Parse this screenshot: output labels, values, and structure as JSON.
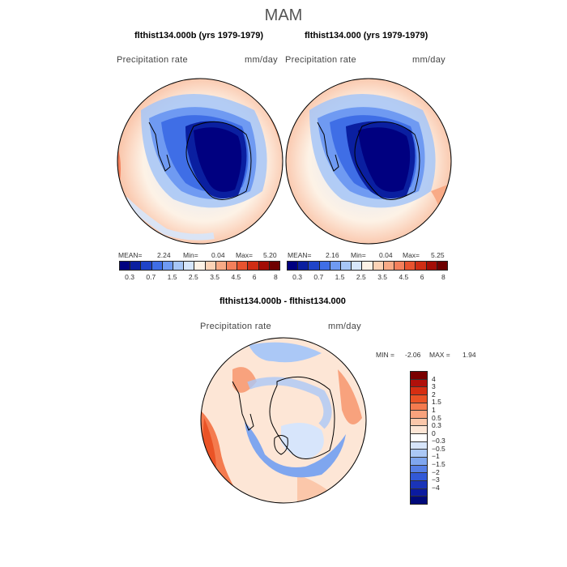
{
  "header": {
    "season": "MAM"
  },
  "panels": [
    {
      "title": "flthist134.000b (yrs 1979-1979)",
      "field_label": "Precipitation rate",
      "units": "mm/day",
      "stats": {
        "mean_label": "MEAN=",
        "mean": "2.24",
        "min_label": "Min=",
        "min": "0.04",
        "max_label": "Max=",
        "max": "5.20"
      }
    },
    {
      "title": "flthist134.000 (yrs 1979-1979)",
      "field_label": "Precipitation rate",
      "units": "mm/day",
      "stats": {
        "mean_label": "MEAN=",
        "mean": "2.16",
        "min_label": "Min=",
        "min": "0.04",
        "max_label": "Max=",
        "max": "5.25"
      }
    }
  ],
  "abs_colorbar": {
    "ticks": [
      "0.3",
      "0.7",
      "1.5",
      "2.5",
      "3.5",
      "4.5",
      "6",
      "8"
    ],
    "colors": [
      "#000080",
      "#0a1fa0",
      "#1f44c8",
      "#3f6ee6",
      "#6f9af2",
      "#a6c6f7",
      "#d6e6fb",
      "#fdf2e6",
      "#fcd3b6",
      "#f8aa86",
      "#f3805c",
      "#e8532f",
      "#cf2d14",
      "#a30d06",
      "#6e0000"
    ]
  },
  "difference": {
    "title": "flthist134.000b - flthist134.000",
    "field_label": "Precipitation rate",
    "units": "mm/day",
    "min_label": "MIN =",
    "min": "-2.06",
    "max_label": "MAX =",
    "max": "1.94",
    "colorbar_ticks": [
      "4",
      "3",
      "2",
      "1.5",
      "1",
      "0.5",
      "0.3",
      "0",
      "−0.3",
      "−0.5",
      "−1",
      "−1.5",
      "−2",
      "−3",
      "−4"
    ],
    "colorbar_colors": [
      "#7a0000",
      "#b0100b",
      "#d62e12",
      "#ea5326",
      "#f47b4f",
      "#f8a27d",
      "#fbc7aa",
      "#fde6d6",
      "#ffffff",
      "#d7e5fb",
      "#abc8f6",
      "#7fa6ef",
      "#567fe6",
      "#3259d7",
      "#1a34b8",
      "#0b1ba0",
      "#000a7a"
    ]
  }
}
